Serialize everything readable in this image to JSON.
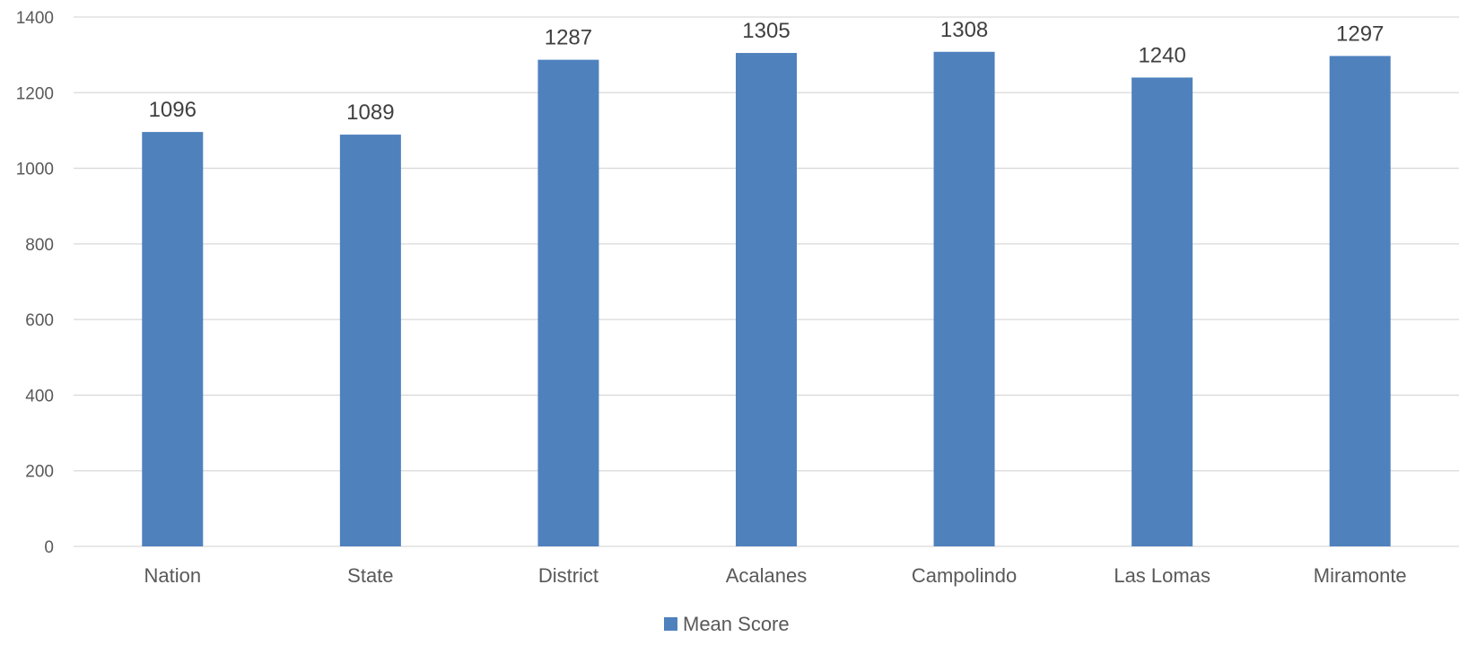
{
  "chart_data": {
    "type": "bar",
    "categories": [
      "Nation",
      "State",
      "District",
      "Acalanes",
      "Campolindo",
      "Las Lomas",
      "Miramonte"
    ],
    "series": [
      {
        "name": "Mean Score",
        "values": [
          1096,
          1089,
          1287,
          1305,
          1308,
          1240,
          1297
        ],
        "color": "#4f81bd"
      }
    ],
    "ylim": [
      0,
      1400
    ],
    "yticks": [
      0,
      200,
      400,
      600,
      800,
      1000,
      1200,
      1400
    ],
    "grid": true,
    "legend": "bottom",
    "data_labels": true
  }
}
